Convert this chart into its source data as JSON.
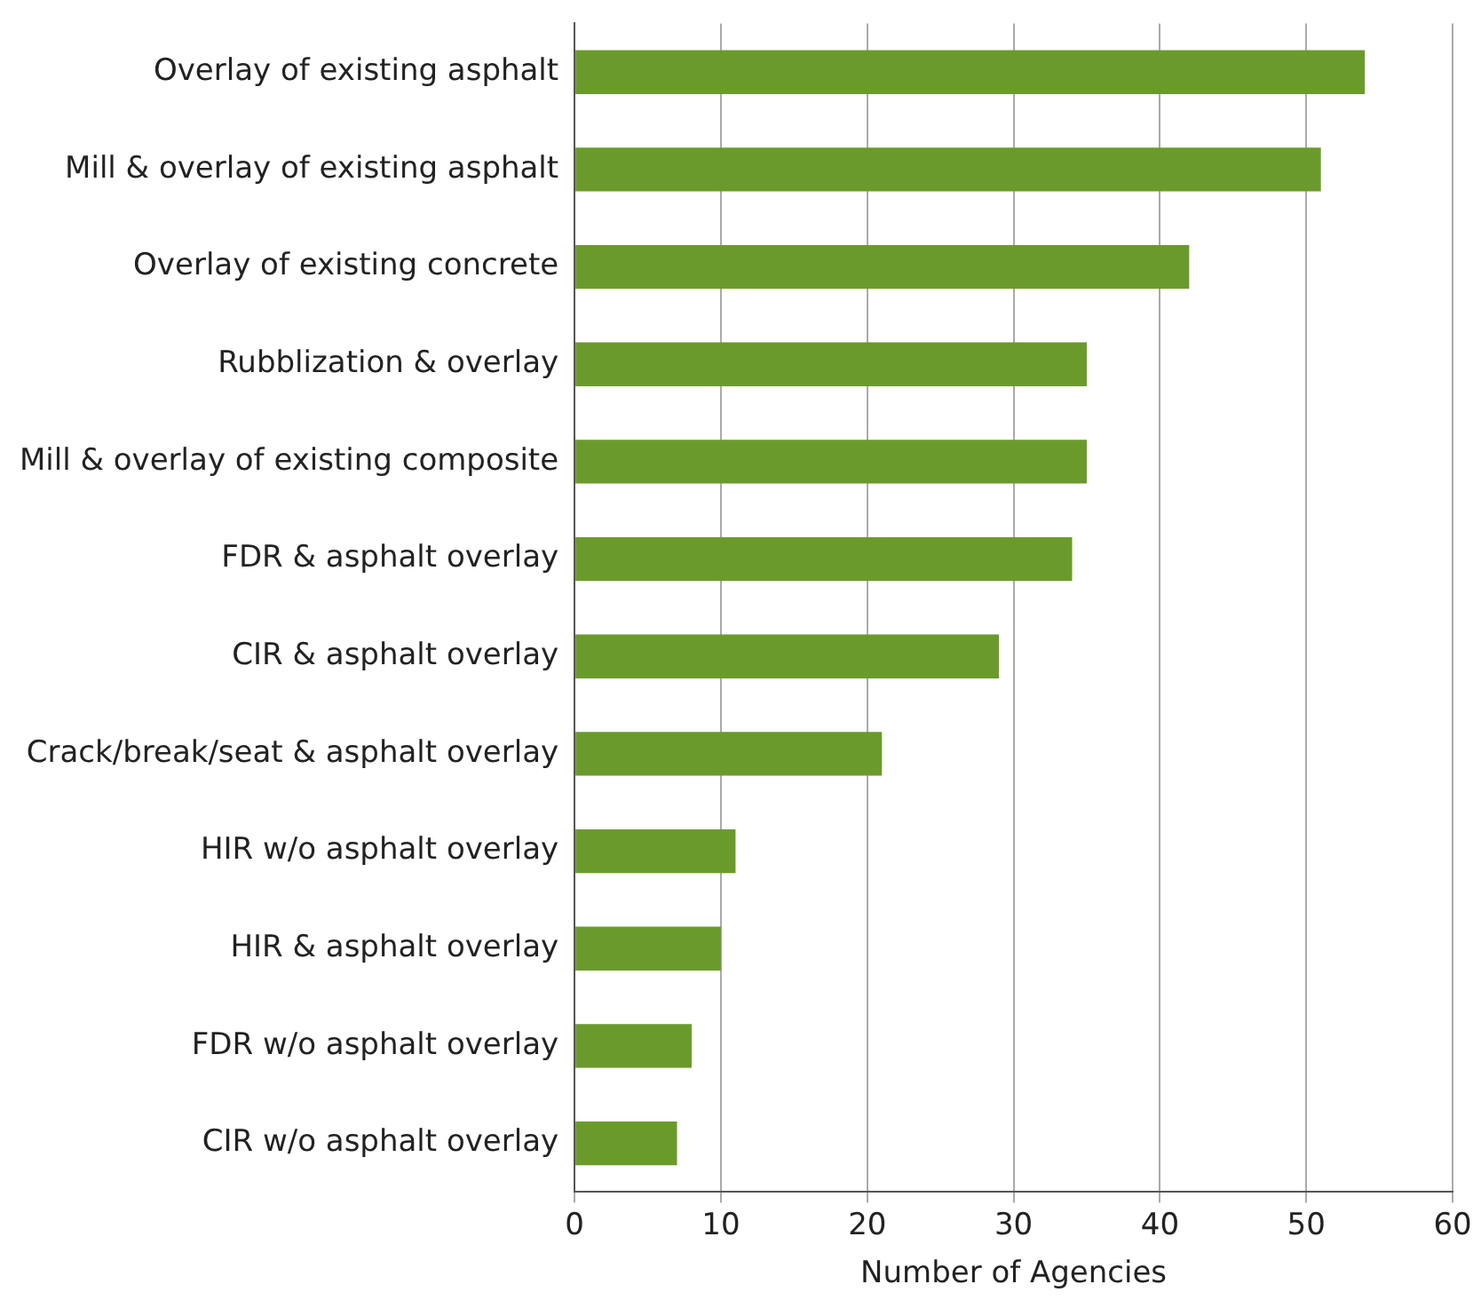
{
  "chart_data": {
    "type": "bar",
    "orientation": "horizontal",
    "xlabel": "Number of Agencies",
    "categories": [
      "Overlay of existing asphalt",
      "Mill & overlay of existing asphalt",
      "Overlay of existing concrete",
      "Rubblization & overlay",
      "Mill & overlay of existing composite",
      "FDR & asphalt overlay",
      "CIR & asphalt overlay",
      "Crack/break/seat & asphalt overlay",
      "HIR w/o asphalt overlay",
      "HIR & asphalt overlay",
      "FDR w/o asphalt overlay",
      "CIR w/o asphalt overlay"
    ],
    "values": [
      54,
      51,
      42,
      35,
      35,
      34,
      29,
      21,
      11,
      10,
      8,
      7
    ],
    "color": "#6b9a2c",
    "xlim": [
      0,
      60
    ],
    "xticks": [
      0,
      10,
      20,
      30,
      40,
      50,
      60
    ],
    "grid": "x",
    "legend": false
  }
}
